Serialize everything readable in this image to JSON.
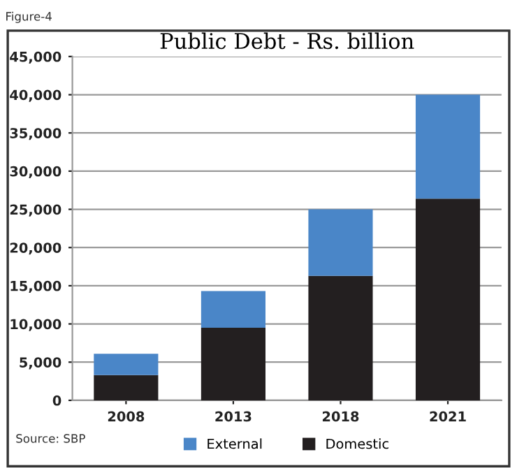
{
  "chart_data": {
    "type": "bar",
    "title": "Public Debt - Rs. billion",
    "categories": [
      "2008",
      "2013",
      "2018",
      "2021"
    ],
    "stacked": true,
    "series": [
      {
        "name": "Domestic",
        "color": "#231f20",
        "values": [
          3300,
          9500,
          16300,
          26400
        ]
      },
      {
        "name": "External",
        "color": "#4a86c8",
        "values": [
          2800,
          4800,
          8700,
          13600
        ]
      }
    ],
    "ylim": [
      0,
      45000
    ],
    "yticks": [
      {
        "value": 0,
        "label": "0"
      },
      {
        "value": 5000,
        "label": "5,000"
      },
      {
        "value": 10000,
        "label": "10,000"
      },
      {
        "value": 15000,
        "label": "15,000"
      },
      {
        "value": 20000,
        "label": "20,000"
      },
      {
        "value": 25000,
        "label": "25,000"
      },
      {
        "value": 30000,
        "label": "30,000"
      },
      {
        "value": 35000,
        "label": "35,000"
      },
      {
        "value": 40000,
        "label": "40,000"
      },
      {
        "value": 45000,
        "label": "45,000"
      }
    ],
    "grid": "y",
    "legend": "bottom",
    "annotations": [
      "Figure-4",
      "Source: SBP"
    ]
  }
}
